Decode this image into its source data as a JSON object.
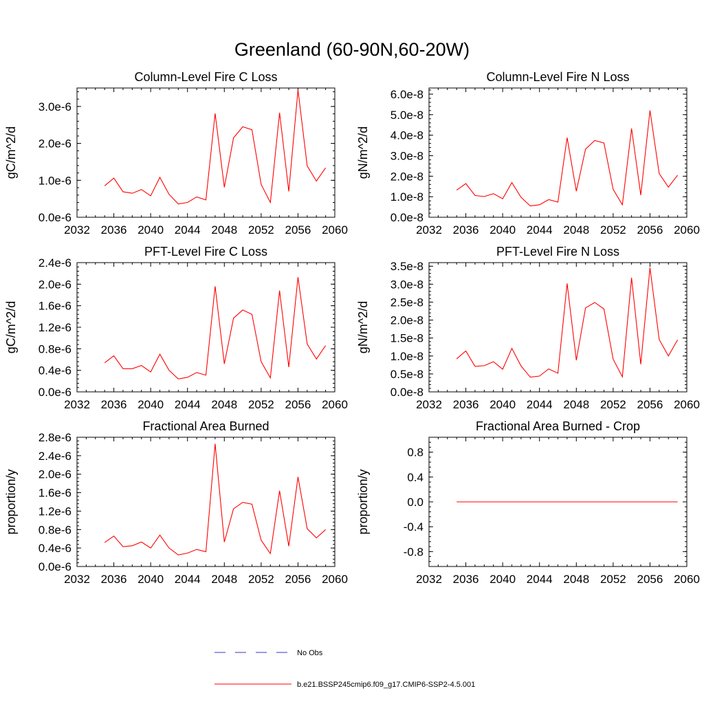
{
  "title": "Greenland (60-90N,60-20W)",
  "chart_data": [
    {
      "type": "line",
      "title": "Column-Level Fire C Loss",
      "ylabel": "gC/m^2/d",
      "xlim": [
        2032,
        2060
      ],
      "xticks": [
        "2032",
        "2036",
        "2040",
        "2044",
        "2048",
        "2052",
        "2056",
        "2060"
      ],
      "ylim": [
        0,
        3.5e-06
      ],
      "yticks": [
        {
          "value": 0,
          "label": "0.0e-6"
        },
        {
          "value": 1e-06,
          "label": "1.0e-6"
        },
        {
          "value": 2e-06,
          "label": "2.0e-6"
        },
        {
          "value": 3e-06,
          "label": "3.0e-6"
        }
      ],
      "x": [
        2035,
        2036,
        2037,
        2038,
        2039,
        2040,
        2041,
        2042,
        2043,
        2044,
        2045,
        2046,
        2047,
        2048,
        2049,
        2050,
        2051,
        2052,
        2053,
        2054,
        2055,
        2056,
        2057,
        2058,
        2059
      ],
      "series": [
        {
          "color": "#ff0000",
          "values": [
            8.5e-07,
            1.06e-06,
            6.9e-07,
            6.5e-07,
            7.5e-07,
            5.8e-07,
            1.08e-06,
            6.2e-07,
            3.6e-07,
            4e-07,
            5.5e-07,
            4.7e-07,
            2.81e-06,
            8.1e-07,
            2.15e-06,
            2.45e-06,
            2.37e-06,
            8.9e-07,
            4e-07,
            2.83e-06,
            7e-07,
            3.45e-06,
            1.39e-06,
            9.8e-07,
            1.34e-06
          ]
        }
      ]
    },
    {
      "type": "line",
      "title": "Column-Level Fire N Loss",
      "ylabel": "gN/m^2/d",
      "xlim": [
        2032,
        2060
      ],
      "xticks": [
        "2032",
        "2036",
        "2040",
        "2044",
        "2048",
        "2052",
        "2056",
        "2060"
      ],
      "ylim": [
        0,
        6.3e-08
      ],
      "yticks": [
        {
          "value": 0,
          "label": "0.0e-8"
        },
        {
          "value": 1e-08,
          "label": "1.0e-8"
        },
        {
          "value": 2e-08,
          "label": "2.0e-8"
        },
        {
          "value": 3e-08,
          "label": "3.0e-8"
        },
        {
          "value": 4e-08,
          "label": "4.0e-8"
        },
        {
          "value": 5e-08,
          "label": "5.0e-8"
        },
        {
          "value": 6e-08,
          "label": "6.0e-8"
        }
      ],
      "x": [
        2035,
        2036,
        2037,
        2038,
        2039,
        2040,
        2041,
        2042,
        2043,
        2044,
        2045,
        2046,
        2047,
        2048,
        2049,
        2050,
        2051,
        2052,
        2053,
        2054,
        2055,
        2056,
        2057,
        2058,
        2059
      ],
      "series": [
        {
          "color": "#ff0000",
          "values": [
            1.32e-08,
            1.64e-08,
            1.06e-08,
            1.01e-08,
            1.15e-08,
            9e-09,
            1.69e-08,
            9.7e-09,
            5.5e-09,
            6.1e-09,
            8.6e-09,
            7.4e-09,
            3.88e-08,
            1.27e-08,
            3.32e-08,
            3.74e-08,
            3.62e-08,
            1.36e-08,
            6.1e-09,
            4.33e-08,
            1.08e-08,
            5.21e-08,
            2.13e-08,
            1.47e-08,
            2.05e-08
          ]
        }
      ]
    },
    {
      "type": "line",
      "title": "PFT-Level Fire C Loss",
      "ylabel": "gC/m^2/d",
      "xlim": [
        2032,
        2060
      ],
      "xticks": [
        "2032",
        "2036",
        "2040",
        "2044",
        "2048",
        "2052",
        "2056",
        "2060"
      ],
      "ylim": [
        0,
        2.4e-06
      ],
      "yticks": [
        {
          "value": 0,
          "label": "0.0e-6"
        },
        {
          "value": 4e-07,
          "label": "0.4e-6"
        },
        {
          "value": 8e-07,
          "label": "0.8e-6"
        },
        {
          "value": 1.2e-06,
          "label": "1.2e-6"
        },
        {
          "value": 1.6e-06,
          "label": "1.6e-6"
        },
        {
          "value": 2e-06,
          "label": "2.0e-6"
        },
        {
          "value": 2.4e-06,
          "label": "2.4e-6"
        }
      ],
      "x": [
        2035,
        2036,
        2037,
        2038,
        2039,
        2040,
        2041,
        2042,
        2043,
        2044,
        2045,
        2046,
        2047,
        2048,
        2049,
        2050,
        2051,
        2052,
        2053,
        2054,
        2055,
        2056,
        2057,
        2058,
        2059
      ],
      "series": [
        {
          "color": "#ff0000",
          "values": [
            5.4e-07,
            6.7e-07,
            4.3e-07,
            4.3e-07,
            4.9e-07,
            3.7e-07,
            7e-07,
            4e-07,
            2.4e-07,
            2.7e-07,
            3.6e-07,
            3.1e-07,
            1.96e-06,
            5.2e-07,
            1.37e-06,
            1.52e-06,
            1.44e-06,
            5.6e-07,
            2.6e-07,
            1.88e-06,
            4.6e-07,
            2.13e-06,
            8.9e-07,
            6.1e-07,
            8.6e-07
          ]
        }
      ]
    },
    {
      "type": "line",
      "title": "PFT-Level Fire N Loss",
      "ylabel": "gN/m^2/d",
      "xlim": [
        2032,
        2060
      ],
      "xticks": [
        "2032",
        "2036",
        "2040",
        "2044",
        "2048",
        "2052",
        "2056",
        "2060"
      ],
      "ylim": [
        0,
        3.6e-08
      ],
      "yticks": [
        {
          "value": 0,
          "label": "0.0e-8"
        },
        {
          "value": 5e-09,
          "label": "0.5e-8"
        },
        {
          "value": 1e-08,
          "label": "1.0e-8"
        },
        {
          "value": 1.5e-08,
          "label": "1.5e-8"
        },
        {
          "value": 2e-08,
          "label": "2.0e-8"
        },
        {
          "value": 2.5e-08,
          "label": "2.5e-8"
        },
        {
          "value": 3e-08,
          "label": "3.0e-8"
        },
        {
          "value": 3.5e-08,
          "label": "3.5e-8"
        }
      ],
      "x": [
        2035,
        2036,
        2037,
        2038,
        2039,
        2040,
        2041,
        2042,
        2043,
        2044,
        2045,
        2046,
        2047,
        2048,
        2049,
        2050,
        2051,
        2052,
        2053,
        2054,
        2055,
        2056,
        2057,
        2058,
        2059
      ],
      "series": [
        {
          "color": "#ff0000",
          "values": [
            9.2e-09,
            1.14e-08,
            7.1e-09,
            7.3e-09,
            8.4e-09,
            6.3e-09,
            1.21e-08,
            7.2e-09,
            4.1e-09,
            4.4e-09,
            6.4e-09,
            5.2e-09,
            3.02e-08,
            8.8e-09,
            2.34e-08,
            2.49e-08,
            2.31e-08,
            9.1e-09,
            4.2e-09,
            3.18e-08,
            7.7e-09,
            3.46e-08,
            1.46e-08,
            1e-08,
            1.45e-08
          ]
        }
      ]
    },
    {
      "type": "line",
      "title": "Fractional Area Burned",
      "ylabel": "proportion/y",
      "xlim": [
        2032,
        2060
      ],
      "xticks": [
        "2032",
        "2036",
        "2040",
        "2044",
        "2048",
        "2052",
        "2056",
        "2060"
      ],
      "ylim": [
        0,
        2.8e-06
      ],
      "yticks": [
        {
          "value": 0,
          "label": "0.0e-6"
        },
        {
          "value": 4e-07,
          "label": "0.4e-6"
        },
        {
          "value": 8e-07,
          "label": "0.8e-6"
        },
        {
          "value": 1.2e-06,
          "label": "1.2e-6"
        },
        {
          "value": 1.6e-06,
          "label": "1.6e-6"
        },
        {
          "value": 2e-06,
          "label": "2.0e-6"
        },
        {
          "value": 2.4e-06,
          "label": "2.4e-6"
        },
        {
          "value": 2.8e-06,
          "label": "2.8e-6"
        }
      ],
      "x": [
        2035,
        2036,
        2037,
        2038,
        2039,
        2040,
        2041,
        2042,
        2043,
        2044,
        2045,
        2046,
        2047,
        2048,
        2049,
        2050,
        2051,
        2052,
        2053,
        2054,
        2055,
        2056,
        2057,
        2058,
        2059
      ],
      "series": [
        {
          "color": "#ff0000",
          "values": [
            5.2e-07,
            6.6e-07,
            4.3e-07,
            4.5e-07,
            5.3e-07,
            4e-07,
            6.8e-07,
            4e-07,
            2.5e-07,
            2.9e-07,
            3.7e-07,
            3.2e-07,
            2.66e-06,
            5.3e-07,
            1.25e-06,
            1.39e-06,
            1.35e-06,
            5.7e-07,
            2.8e-07,
            1.64e-06,
            4.4e-07,
            1.94e-06,
            8.2e-07,
            6.2e-07,
            8e-07
          ]
        }
      ]
    },
    {
      "type": "line",
      "title": "Fractional Area Burned - Crop",
      "ylabel": "proportion/y",
      "xlim": [
        2032,
        2060
      ],
      "xticks": [
        "2032",
        "2036",
        "2040",
        "2044",
        "2048",
        "2052",
        "2056",
        "2060"
      ],
      "ylim": [
        -1.04,
        1.04
      ],
      "yticks": [
        {
          "value": -0.8,
          "label": "-0.8"
        },
        {
          "value": -0.4,
          "label": "-0.4"
        },
        {
          "value": 0,
          "label": "0.0"
        },
        {
          "value": 0.4,
          "label": "0.4"
        },
        {
          "value": 0.8,
          "label": "0.8"
        }
      ],
      "x": [
        2035,
        2036,
        2037,
        2038,
        2039,
        2040,
        2041,
        2042,
        2043,
        2044,
        2045,
        2046,
        2047,
        2048,
        2049,
        2050,
        2051,
        2052,
        2053,
        2054,
        2055,
        2056,
        2057,
        2058,
        2059
      ],
      "series": [
        {
          "color": "#ff0000",
          "values": [
            0,
            0,
            0,
            0,
            0,
            0,
            0,
            0,
            0,
            0,
            0,
            0,
            0,
            0,
            0,
            0,
            0,
            0,
            0,
            0,
            0,
            0,
            0,
            0,
            0
          ]
        }
      ]
    }
  ],
  "legend": [
    {
      "label": "No Obs",
      "color": "#3333cc",
      "style": "dashed"
    },
    {
      "label": "b.e21.BSSP245cmip6.f09_g17.CMIP6-SSP2-4.5.001",
      "color": "#ff0000",
      "style": "solid"
    }
  ]
}
